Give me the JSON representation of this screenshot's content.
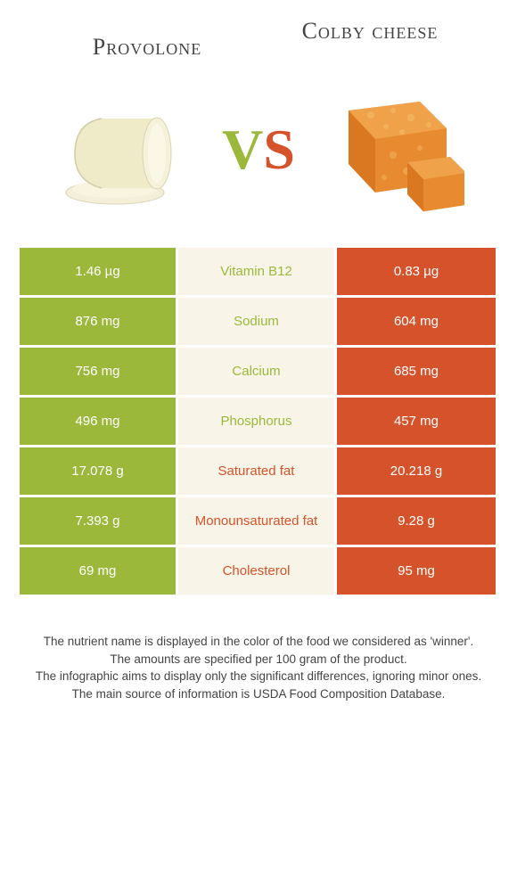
{
  "colors": {
    "provolone": "#9bb83b",
    "colby": "#d5522a",
    "mid_bg": "#f8f5e8",
    "text_dark": "#444444"
  },
  "header": {
    "left_title": "Provolone",
    "right_title": "Colby cheese"
  },
  "vs": {
    "v": "V",
    "s": "S"
  },
  "table": {
    "rows": [
      {
        "left": "1.46 µg",
        "mid": "Vitamin B12",
        "right": "0.83 µg",
        "winner": "left"
      },
      {
        "left": "876 mg",
        "mid": "Sodium",
        "right": "604 mg",
        "winner": "left"
      },
      {
        "left": "756 mg",
        "mid": "Calcium",
        "right": "685 mg",
        "winner": "left"
      },
      {
        "left": "496 mg",
        "mid": "Phosphorus",
        "right": "457 mg",
        "winner": "left"
      },
      {
        "left": "17.078 g",
        "mid": "Saturated fat",
        "right": "20.218 g",
        "winner": "right"
      },
      {
        "left": "7.393 g",
        "mid": "Monounsaturated fat",
        "right": "9.28 g",
        "winner": "right"
      },
      {
        "left": "69 mg",
        "mid": "Cholesterol",
        "right": "95 mg",
        "winner": "right"
      }
    ]
  },
  "footnotes": [
    "The nutrient name is displayed in the color of the food we considered as 'winner'.",
    "The amounts are specified per 100 gram of the product.",
    "The infographic aims to display only the significant differences, ignoring minor ones.",
    "The main source of information is USDA Food Composition Database."
  ]
}
